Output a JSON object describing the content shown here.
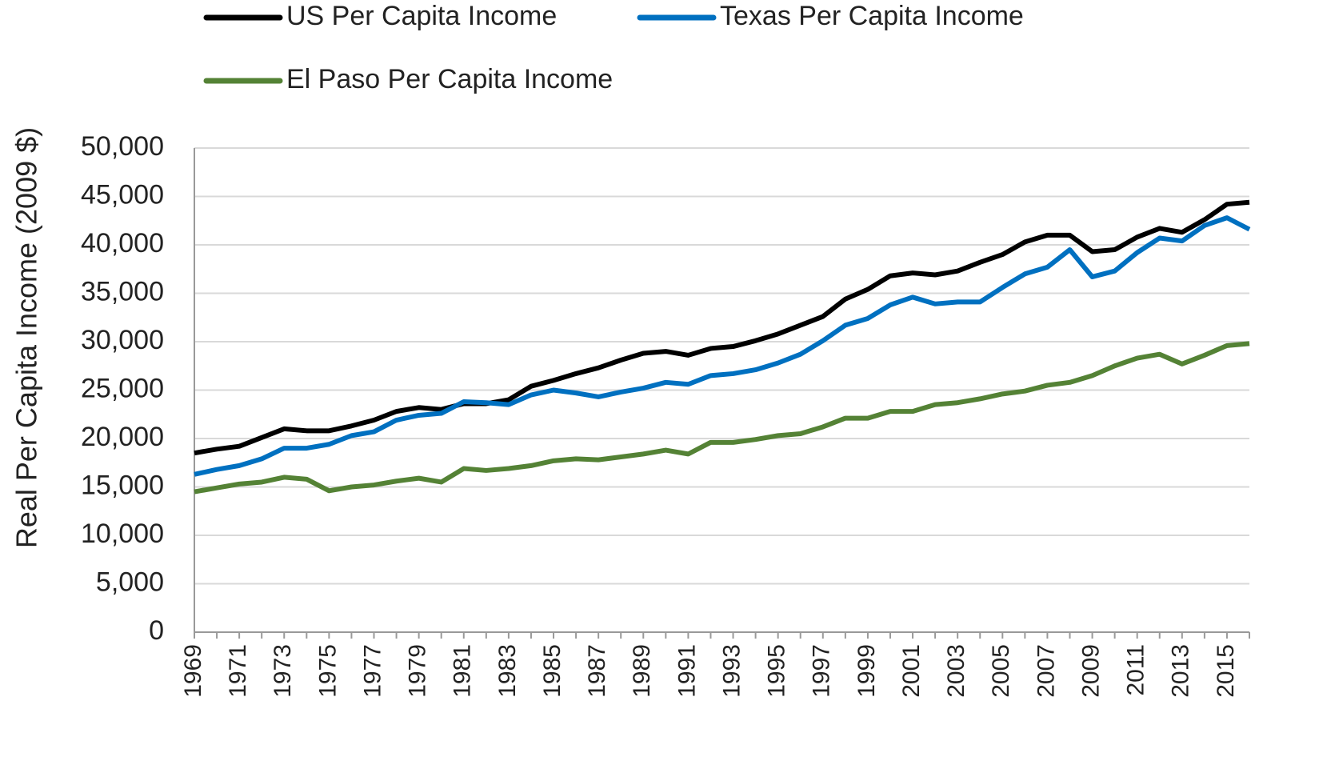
{
  "chart_data": {
    "type": "line",
    "y_label": "Real Per Capita  Income (2009 $)",
    "categories": [
      "1969",
      null,
      "1971",
      null,
      "1973",
      null,
      "1975",
      null,
      "1977",
      null,
      "1979",
      null,
      "1981",
      null,
      "1983",
      null,
      "1985",
      null,
      "1987",
      null,
      "1989",
      null,
      "1991",
      null,
      "1993",
      null,
      "1995",
      null,
      "1997",
      null,
      "1999",
      null,
      "2001",
      null,
      "2003",
      null,
      "2005",
      null,
      "2007",
      null,
      "2009",
      null,
      "2011",
      null,
      "2013",
      null,
      "2015",
      null
    ],
    "series": [
      {
        "name": "US Per Capita Income",
        "color": "#000000",
        "values": [
          18500,
          18900,
          19200,
          20100,
          21000,
          20800,
          20800,
          21300,
          21900,
          22800,
          23200,
          23000,
          23600,
          23600,
          24000,
          25400,
          26000,
          26700,
          27300,
          28100,
          28800,
          29000,
          28600,
          29300,
          29500,
          30100,
          30800,
          31700,
          32600,
          34400,
          35400,
          36800,
          37100,
          36900,
          37300,
          38200,
          39000,
          40300,
          41000,
          41000,
          39300,
          39500,
          40800,
          41700,
          41300,
          42600,
          44200,
          44400
        ]
      },
      {
        "name": "Texas Per Capita Income",
        "color": "#0070c0",
        "values": [
          16300,
          16800,
          17200,
          17900,
          19000,
          19000,
          19400,
          20300,
          20700,
          21900,
          22400,
          22600,
          23800,
          23700,
          23500,
          24500,
          25000,
          24700,
          24300,
          24800,
          25200,
          25800,
          25600,
          26500,
          26700,
          27100,
          27800,
          28700,
          30100,
          31700,
          32400,
          33800,
          34600,
          33900,
          34100,
          34100,
          35600,
          37000,
          37700,
          39500,
          36700,
          37300,
          39200,
          40700,
          40400,
          42000,
          42800,
          41600
        ]
      },
      {
        "name": "El Paso Per Capita Income",
        "color": "#548235",
        "values": [
          14500,
          14900,
          15300,
          15500,
          16000,
          15800,
          14600,
          15000,
          15200,
          15600,
          15900,
          15500,
          16900,
          16700,
          16900,
          17200,
          17700,
          17900,
          17800,
          18100,
          18400,
          18800,
          18400,
          19600,
          19600,
          19900,
          20300,
          20500,
          21200,
          22100,
          22100,
          22800,
          22800,
          23500,
          23700,
          24100,
          24600,
          24900,
          25500,
          25800,
          26500,
          27500,
          28300,
          28700,
          27700,
          28600,
          29600,
          29800
        ]
      }
    ],
    "ylim": [
      0,
      50000
    ],
    "yticks": [
      0,
      {
        "value": 5000,
        "label": "5,000"
      },
      {
        "value": 10000,
        "label": "10,000"
      },
      {
        "value": 15000,
        "label": "15,000"
      },
      {
        "value": 20000,
        "label": "20,000"
      },
      {
        "value": 25000,
        "label": "25,000"
      },
      {
        "value": 30000,
        "label": "30,000"
      },
      {
        "value": 35000,
        "label": "35,000"
      },
      {
        "value": 40000,
        "label": "40,000"
      },
      {
        "value": 45000,
        "label": "45,000"
      },
      {
        "value": 50000,
        "label": "50,000"
      }
    ],
    "grid": true
  }
}
